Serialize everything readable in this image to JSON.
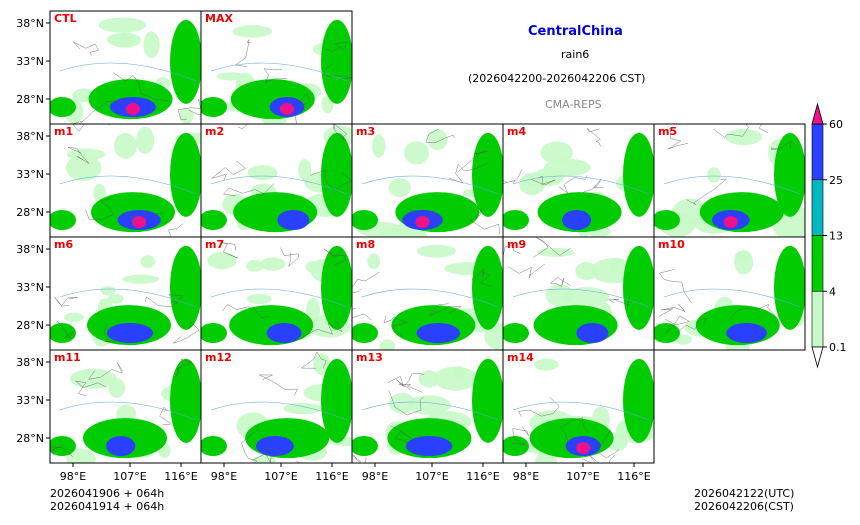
{
  "title": {
    "region": "CentralChina",
    "variable": "rain6",
    "period": "(2026042200-2026042206 CST)",
    "model": "CMA-REPS"
  },
  "colors": {
    "region": "#0000dd",
    "model": "#888888",
    "panel_label": "#ee0000",
    "levels": [
      "#c8fac8",
      "#00cc00",
      "#00b8c0",
      "#2a40ff",
      "#ee1188"
    ]
  },
  "chart_data": {
    "type": "heatmap",
    "description_variable": "6-hour accumulated precipitation (mm)",
    "panels": [
      "CTL",
      "MAX",
      "m1",
      "m2",
      "m3",
      "m4",
      "m5",
      "m6",
      "m7",
      "m8",
      "m9",
      "m10",
      "m11",
      "m12",
      "m13",
      "m14"
    ],
    "xticks": [
      "98°E",
      "107°E",
      "116°E"
    ],
    "yticks": [
      "38°N",
      "33°N",
      "28°N"
    ],
    "colorbar": {
      "levels": [
        0.1,
        4,
        13,
        25,
        60
      ],
      "tick_labels": [
        "0.1",
        "4",
        "13",
        "25",
        "60"
      ],
      "extend": "both"
    }
  },
  "footer": {
    "init_line1": "2026041906  +  064h",
    "init_line2": "2026041914  +  064h",
    "valid_utc": "2026042122(UTC)",
    "valid_cst": "2026042206(CST)"
  }
}
